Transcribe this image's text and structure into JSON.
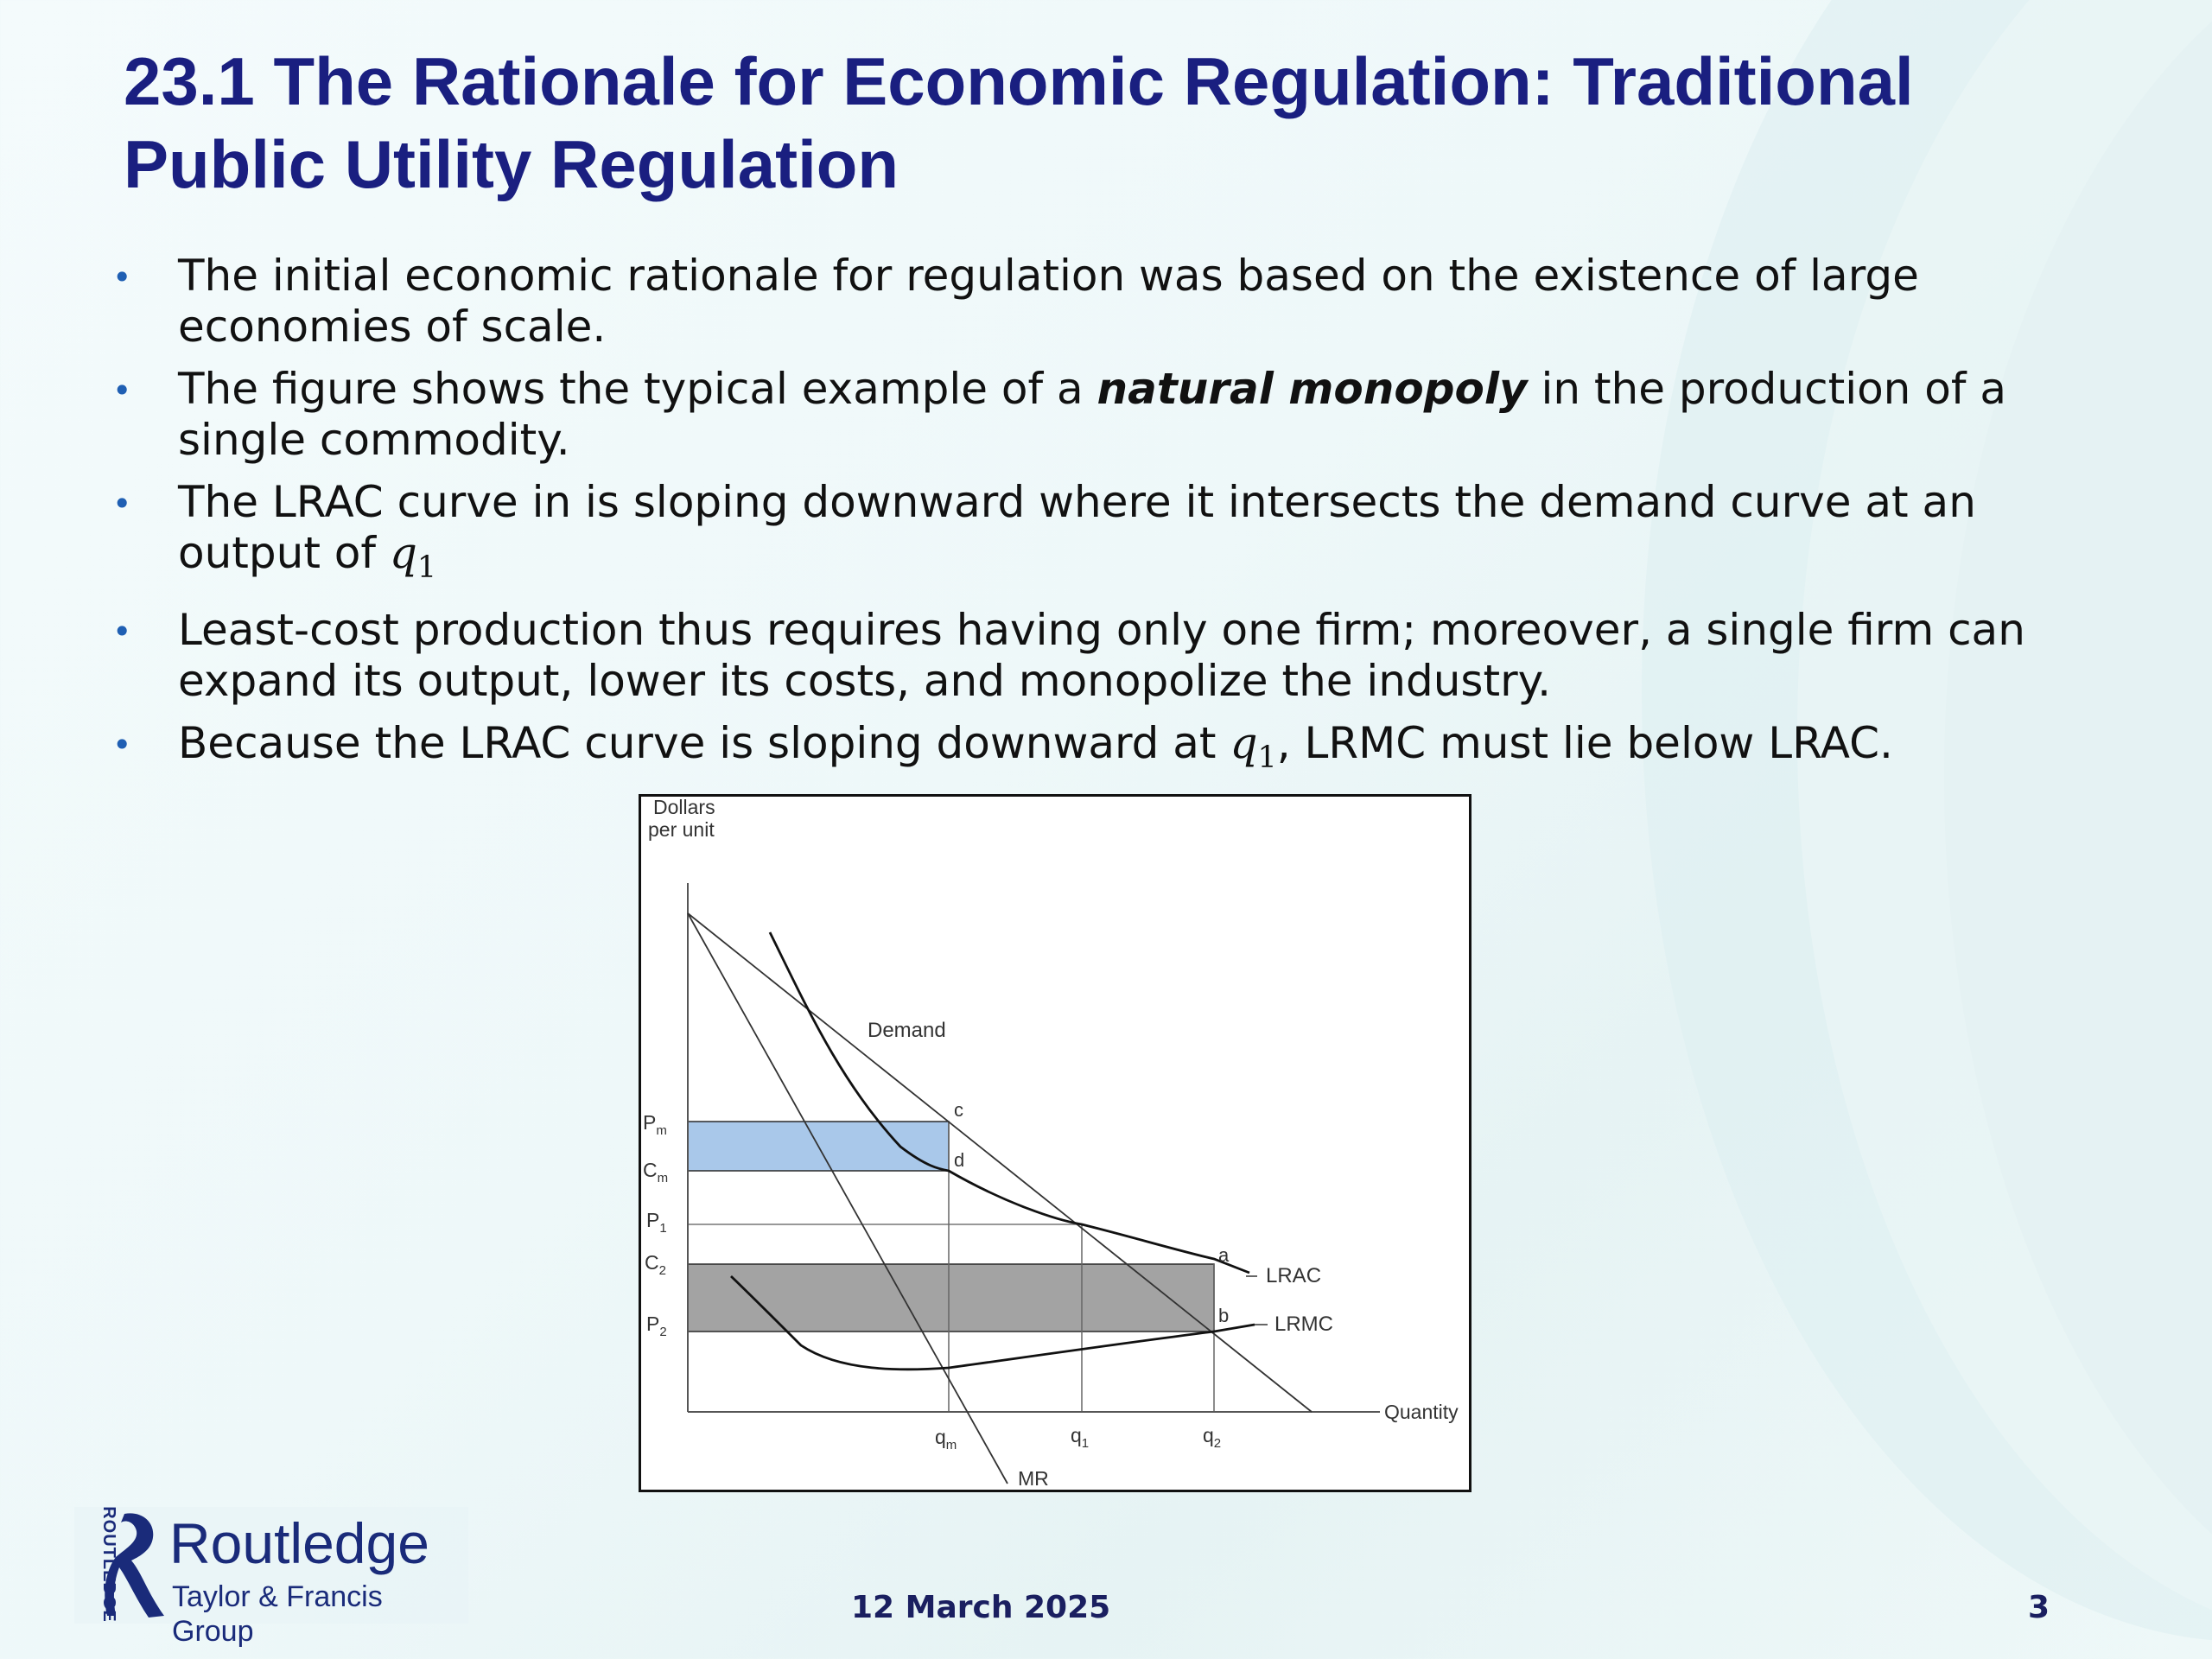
{
  "slide": {
    "title_lines": [
      "23.1  The Rationale for Economic Regulation:  Traditional",
      "Public Utility Regulation"
    ],
    "bullets": [
      {
        "before": "The initial economic rationale for regulation was based on the existence of large economies of scale."
      },
      {
        "before": "The figure shows the typical example of a ",
        "emphasis": "natural monopoly",
        "after": " in the production of a single commodity."
      },
      {
        "before": "The LRAC curve in is sloping downward where it intersects the demand curve at an output of ",
        "math": "q",
        "math_sub": "1"
      },
      {
        "before": "Least-cost production thus requires having only one firm; moreover, a single firm can expand its output, lower its costs, and monopolize the industry."
      },
      {
        "before": "Because the LRAC curve is sloping downward at ",
        "math": "q",
        "math_sub": "1",
        "after": ", LRMC must lie below LRAC."
      }
    ],
    "bullet_marker": "•",
    "footer_date": "12 March 2025",
    "page_number": "3"
  },
  "figure": {
    "y_axis_label": [
      "Dollars",
      "per unit"
    ],
    "x_axis_label": "Quantity",
    "price_ticks": [
      {
        "main": "P",
        "sub": "m"
      },
      {
        "main": "C",
        "sub": "m"
      },
      {
        "main": "P",
        "sub": "1"
      },
      {
        "main": "C",
        "sub": "2"
      },
      {
        "main": "P",
        "sub": "2"
      }
    ],
    "quantity_ticks": [
      {
        "main": "q",
        "sub": "m"
      },
      {
        "main": "q",
        "sub": "1"
      },
      {
        "main": "q",
        "sub": "2"
      }
    ],
    "curve_labels": {
      "demand": "Demand",
      "lrac": "LRAC",
      "lrmc": "LRMC",
      "mr": "MR"
    },
    "point_labels": {
      "c": "c",
      "d": "d",
      "a": "a",
      "b": "b"
    },
    "colors": {
      "monopoly_profit_area": "#a9c8ea",
      "loss_area": "#a3a3a3",
      "curves": "#1a1a1a",
      "guides": "#666666"
    }
  },
  "logo": {
    "name": "Routledge",
    "sub": "Taylor & Francis Group",
    "side_text": "ROUTLEDGE"
  }
}
